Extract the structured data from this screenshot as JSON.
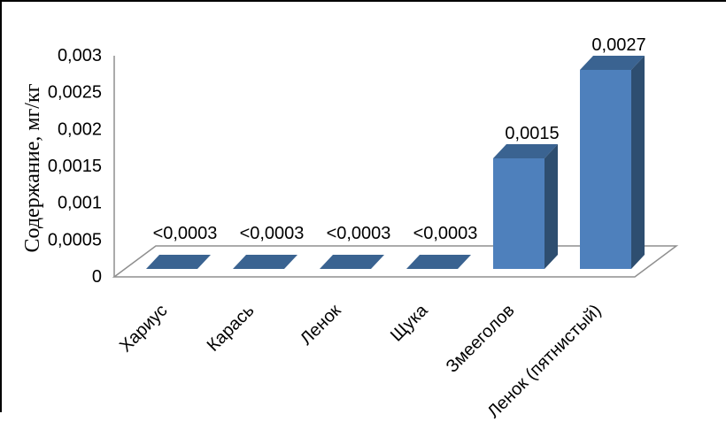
{
  "figure": {
    "background": "#FFFFFF",
    "border_color": "#000000"
  },
  "chart_data": {
    "type": "bar",
    "projection": "3d",
    "title": "",
    "xlabel": "",
    "ylabel": "Содержание, мг/кг",
    "categories": [
      "Хариус",
      "Карась",
      "Ленок",
      "Щука",
      "Змееголов",
      "Ленок (пятнистый)"
    ],
    "values": [
      null,
      null,
      null,
      null,
      0.0015,
      0.0027
    ],
    "data_labels": [
      "<0,0003",
      "<0,0003",
      "<0,0003",
      "<0,0003",
      "0,0015",
      "0,0027"
    ],
    "detection_limit_note": "<0,0003",
    "y_ticks": [
      {
        "value": 0,
        "label": "0"
      },
      {
        "value": 0.0005,
        "label": "0,0005"
      },
      {
        "value": 0.001,
        "label": "0,001"
      },
      {
        "value": 0.0015,
        "label": "0,0015"
      },
      {
        "value": 0.002,
        "label": "0,002"
      },
      {
        "value": 0.0025,
        "label": "0,0025"
      },
      {
        "value": 0.003,
        "label": "0,003"
      }
    ],
    "ylim": [
      0,
      0.003
    ],
    "decimal_separator": ",",
    "grid": false,
    "legend": null,
    "colors": {
      "bar_front": "#4E80BC",
      "bar_top": "#3A6391",
      "bar_side": "#2E4E70",
      "axis_line": "#8F8F8F",
      "text": "#000000"
    }
  }
}
